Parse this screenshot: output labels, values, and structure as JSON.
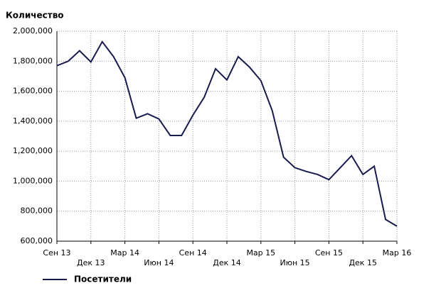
{
  "chart_data": {
    "type": "line",
    "title": "Количество",
    "categories": [
      "Сен 13",
      null,
      null,
      "Дек 13",
      null,
      null,
      "Мар 14",
      null,
      null,
      "Июн 14",
      null,
      null,
      "Сен 14",
      null,
      null,
      "Дек 14",
      null,
      null,
      "Мар 15",
      null,
      null,
      "Июн 15",
      null,
      null,
      "Сен 15",
      null,
      null,
      "Дек 15",
      null,
      null,
      "Мар 16"
    ],
    "series": [
      {
        "name": "Посетители",
        "color": "#1a1a4e",
        "values": [
          1770000,
          1800000,
          1870000,
          1795000,
          1930000,
          1830000,
          1690000,
          1420000,
          1450000,
          1415000,
          1305000,
          1305000,
          1440000,
          1560000,
          1750000,
          1675000,
          1830000,
          1760000,
          1670000,
          1470000,
          1160000,
          1090000,
          1065000,
          1045000,
          1010000,
          1090000,
          1170000,
          1045000,
          1100000,
          745000,
          700000
        ]
      }
    ],
    "ylim": [
      600000,
      2000000
    ],
    "yticks": [
      {
        "value": 600000,
        "label": "600,000"
      },
      {
        "value": 800000,
        "label": "800,000"
      },
      {
        "value": 1000000,
        "label": "1,000,000"
      },
      {
        "value": 1200000,
        "label": "1,200,000"
      },
      {
        "value": 1400000,
        "label": "1,400,000"
      },
      {
        "value": 1600000,
        "label": "1,600,000"
      },
      {
        "value": 1800000,
        "label": "1,800,000"
      },
      {
        "value": 2000000,
        "label": "2,000,000"
      }
    ],
    "grid": true
  }
}
